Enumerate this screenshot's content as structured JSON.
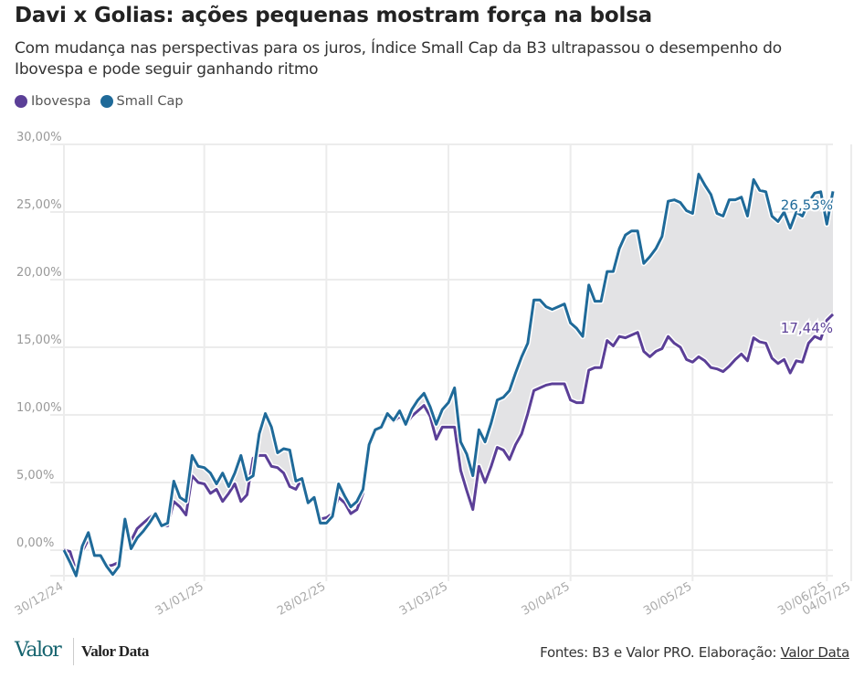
{
  "header": {
    "title": "Davi x Golias: ações pequenas mostram força na bolsa",
    "subtitle": "Com mudança nas perspectivas para os juros, Índice Small Cap da B3 ultrapassou o desempenho do Ibovespa e pode seguir ganhando ritmo"
  },
  "footer": {
    "logo": "Valor",
    "brand": "Valor Data",
    "source_prefix": "Fontes: B3 e Valor PRO. Elaboração: ",
    "source_link": "Valor Data"
  },
  "colors": {
    "ibovespa": "#5b3f97",
    "small_cap": "#1f6a99",
    "fill": "#e3e3e5",
    "grid": "#ececec"
  },
  "chart_data": {
    "type": "line",
    "title": "Davi x Golias: ações pequenas mostram força na bolsa",
    "xlabel": "",
    "ylabel": "",
    "ylim": [
      -1.9,
      30
    ],
    "yticks": [
      {
        "value": 30,
        "label": "30,00%"
      },
      {
        "value": 25,
        "label": "25,00%"
      },
      {
        "value": 20,
        "label": "20,00%"
      },
      {
        "value": 15,
        "label": "15,00%"
      },
      {
        "value": 10,
        "label": "10,00%"
      },
      {
        "value": 5,
        "label": "5,00%"
      },
      {
        "value": 0,
        "label": "0,00%"
      }
    ],
    "xticks": [
      {
        "index": 0,
        "label": "30/12/24"
      },
      {
        "index": 23,
        "label": "31/01/25"
      },
      {
        "index": 43,
        "label": "28/02/25"
      },
      {
        "index": 63,
        "label": "31/03/25"
      },
      {
        "index": 83,
        "label": "30/04/25"
      },
      {
        "index": 103,
        "label": "30/05/25"
      },
      {
        "index": 125,
        "label": "30/06/25"
      },
      {
        "index": 129,
        "label": "04/07/25"
      }
    ],
    "legend_position": "top-left",
    "grid": true,
    "series": [
      {
        "name": "Ibovespa",
        "end_label": "17,44%",
        "values": [
          0,
          -0.1,
          -1.6,
          -0.1,
          0.8,
          -0.4,
          -0.4,
          -1.2,
          -1.1,
          -0.9,
          1.4,
          0.7,
          1.6,
          2.0,
          2.4,
          2.7,
          1.8,
          1.8,
          3.6,
          3.2,
          2.6,
          5.5,
          5.0,
          4.9,
          4.2,
          4.5,
          3.6,
          4.2,
          4.9,
          3.6,
          4.1,
          6.8,
          7.0,
          7.0,
          6.2,
          6.1,
          5.7,
          4.7,
          4.5,
          5.3,
          3.5,
          3.9,
          2.3,
          2.4,
          2.7,
          3.9,
          3.5,
          2.7,
          3.0,
          4.2,
          7.8,
          8.9,
          9.2,
          9.9,
          9.5,
          9.9,
          9.3,
          9.9,
          10.3,
          10.7,
          9.9,
          8.2,
          9.1,
          9.1,
          9.1,
          5.9,
          4.4,
          3.0,
          6.2,
          5.0,
          6.2,
          7.6,
          7.4,
          6.7,
          7.8,
          8.6,
          10.1,
          11.8,
          12.0,
          12.2,
          12.3,
          12.3,
          12.3,
          11.1,
          10.9,
          10.9,
          13.3,
          13.5,
          13.5,
          15.5,
          15.1,
          15.8,
          15.7,
          15.9,
          16.1,
          14.7,
          14.3,
          14.7,
          14.9,
          15.8,
          15.3,
          15.0,
          14.1,
          13.9,
          14.3,
          14.0,
          13.5,
          13.4,
          13.2,
          13.6,
          14.1,
          14.5,
          14.0,
          15.7,
          15.4,
          15.3,
          14.2,
          13.8,
          14.1,
          13.1,
          14.0,
          13.9,
          15.3,
          15.8,
          15.6,
          17.0,
          17.44
        ]
      },
      {
        "name": "Small Cap",
        "end_label": "26,53%",
        "values": [
          0,
          -0.9,
          -1.9,
          0.3,
          1.3,
          -0.4,
          -0.4,
          -1.2,
          -1.8,
          -1.2,
          2.3,
          0.1,
          0.9,
          1.4,
          2.0,
          2.7,
          1.8,
          2.0,
          5.1,
          3.9,
          3.6,
          7.0,
          6.2,
          6.1,
          5.7,
          4.9,
          5.7,
          4.7,
          5.7,
          7.0,
          5.2,
          5.5,
          8.6,
          10.1,
          9.1,
          7.2,
          7.5,
          7.4,
          5.1,
          5.3,
          3.5,
          3.9,
          2.0,
          2.0,
          2.5,
          4.9,
          4.0,
          3.2,
          3.6,
          4.5,
          7.8,
          8.9,
          9.1,
          10.1,
          9.6,
          10.3,
          9.3,
          10.4,
          11.1,
          11.6,
          10.6,
          9.3,
          10.4,
          10.9,
          12.0,
          8.0,
          7.1,
          5.5,
          8.9,
          8.0,
          9.4,
          11.1,
          11.3,
          11.8,
          13.1,
          14.3,
          15.3,
          18.5,
          18.5,
          18.0,
          17.8,
          18.0,
          18.2,
          16.8,
          16.4,
          15.8,
          19.6,
          18.4,
          18.4,
          20.6,
          20.6,
          22.3,
          23.3,
          23.6,
          23.6,
          21.2,
          21.7,
          22.3,
          23.2,
          25.8,
          25.9,
          25.7,
          25.1,
          24.9,
          27.8,
          27.0,
          26.3,
          24.9,
          24.7,
          25.9,
          25.9,
          26.1,
          24.7,
          27.4,
          26.6,
          26.5,
          24.7,
          24.3,
          25.0,
          23.8,
          25.0,
          24.7,
          25.7,
          26.4,
          26.5,
          24.1,
          26.53
        ]
      }
    ]
  }
}
